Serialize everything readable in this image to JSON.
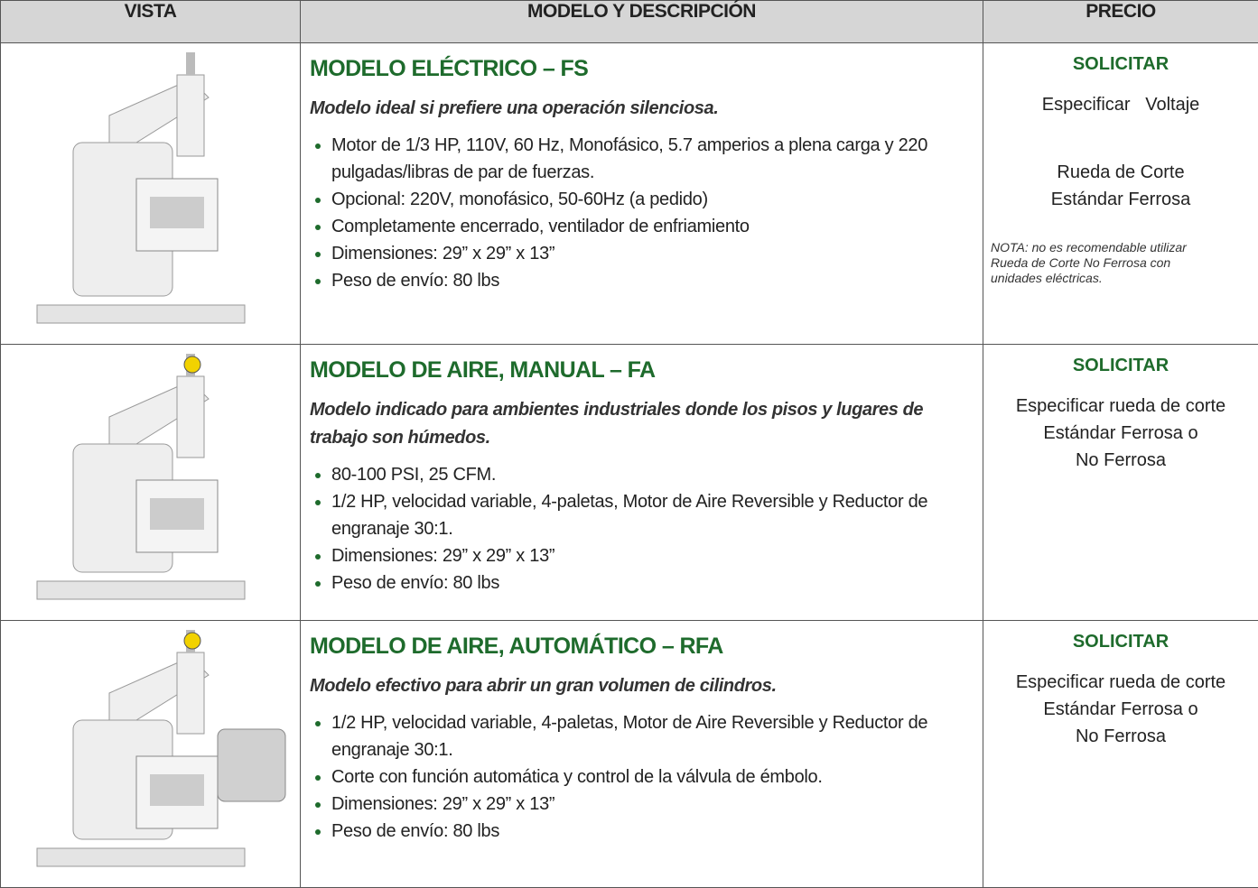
{
  "table": {
    "headers": [
      "VISTA",
      "MODELO Y DESCRIPCIÓN",
      "PRECIO"
    ],
    "rows": [
      {
        "model": "MODELO ELÉCTRICO – FS",
        "tagline": "Modelo ideal si prefiere una operación silenciosa.",
        "bullets": [
          "Motor de 1/3 HP, 110V, 60 Hz, Monofásico, 5.7 amperios a plena carga y 220 pulgadas/libras de par de fuerzas.",
          "Opcional: 220V, monofásico, 50-60Hz (a pedido)",
          "Completamente encerrado, ventilador de enfriamiento",
          "Dimensiones: 29” x 29” x 13”",
          "Peso de envío: 80 lbs"
        ],
        "action": "SOLICITAR",
        "price_blocks": [
          [
            "Especificar   Voltaje"
          ],
          [
            "Rueda de Corte",
            "Estándar Ferrosa"
          ]
        ],
        "note": "NOTA: no es recomendable utilizar Rueda de Corte No Ferrosa con unidades eléctricas."
      },
      {
        "model": "MODELO DE AIRE, MANUAL – FA",
        "tagline": "Modelo indicado para ambientes industriales donde los pisos y lugares de trabajo son húmedos.",
        "bullets": [
          "80-100 PSI, 25 CFM.",
          "1/2 HP, velocidad variable, 4-paletas, Motor de Aire Reversible y Reductor de engranaje 30:1.",
          "Dimensiones: 29” x 29” x 13”",
          "Peso de envío: 80 lbs"
        ],
        "action": "SOLICITAR",
        "price_blocks": [
          [
            "Especificar rueda de corte",
            "Estándar Ferrosa o",
            "No Ferrosa"
          ]
        ]
      },
      {
        "model": "MODELO DE AIRE, AUTOMÁTICO – RFA",
        "tagline": "Modelo efectivo para abrir un gran volumen de cilindros.",
        "bullets": [
          "1/2 HP, velocidad variable, 4-paletas, Motor de Aire Reversible y Reductor de engranaje 30:1.",
          "Corte con función automática y control de la válvula de émbolo.",
          "Dimensiones: 29” x 29” x 13”",
          "Peso de envío: 80 lbs"
        ],
        "action": "SOLICITAR",
        "price_blocks": [
          [
            "Especificar rueda de corte",
            "Estándar Ferrosa o",
            "No Ferrosa"
          ]
        ]
      }
    ]
  }
}
